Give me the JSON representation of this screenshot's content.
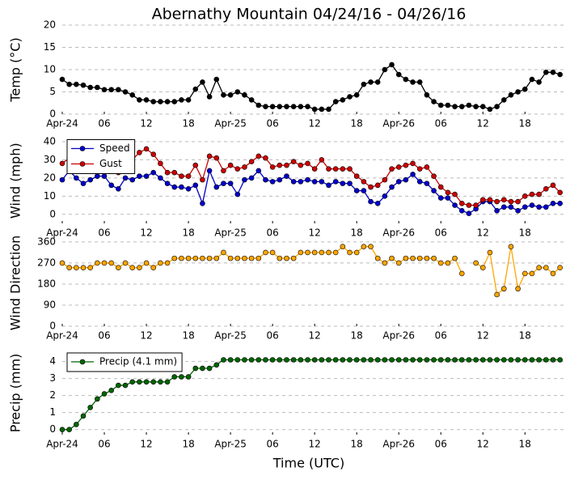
{
  "chart_data": [
    {
      "type": "line",
      "title": "Abernathy Mountain 04/24/16 - 04/26/16",
      "ylabel": "Temp (°C)",
      "x": [
        0,
        1,
        2,
        3,
        4,
        5,
        6,
        7,
        8,
        9,
        10,
        11,
        12,
        13,
        14,
        15,
        16,
        17,
        18,
        19,
        20,
        21,
        22,
        23,
        24,
        25,
        26,
        27,
        28,
        29,
        30,
        31,
        32,
        33,
        34,
        35,
        36,
        37,
        38,
        39,
        40,
        41,
        42,
        43,
        44,
        45,
        46,
        47,
        48,
        49,
        50,
        51,
        52,
        53,
        54,
        55,
        56,
        57,
        58,
        59,
        60,
        61,
        62,
        63,
        64,
        65,
        66,
        67,
        68,
        69,
        70,
        71
      ],
      "series": [
        {
          "color": "#000000",
          "values": [
            7.8,
            6.7,
            6.7,
            6.5,
            6,
            6,
            5.5,
            5.5,
            5.5,
            5,
            4.3,
            3.2,
            3.2,
            2.8,
            2.8,
            2.8,
            2.8,
            3.2,
            3.2,
            5.6,
            7.2,
            3.9,
            7.8,
            4.3,
            4.3,
            5,
            4.3,
            3.2,
            2,
            1.7,
            1.7,
            1.7,
            1.7,
            1.7,
            1.7,
            1.7,
            1.1,
            1.1,
            1.1,
            2.8,
            3.2,
            3.9,
            4.3,
            6.7,
            7.2,
            7.2,
            10,
            11.1,
            8.9,
            7.8,
            7.2,
            7.2,
            4.3,
            2.8,
            2,
            2,
            1.7,
            1.7,
            2,
            1.7,
            1.7,
            1.1,
            1.7,
            3.2,
            4.3,
            5,
            5.6,
            7.8,
            7.2,
            9.4,
            9.4,
            8.9
          ]
        }
      ],
      "xlim": [
        0,
        71.5
      ],
      "xticks": [
        {
          "value": 0,
          "label": "Apr-24"
        },
        {
          "value": 6,
          "label": "06"
        },
        {
          "value": 12,
          "label": "12"
        },
        {
          "value": 18,
          "label": "18"
        },
        {
          "value": 24,
          "label": "Apr-25"
        },
        {
          "value": 30,
          "label": "06"
        },
        {
          "value": 36,
          "label": "12"
        },
        {
          "value": 42,
          "label": "18"
        },
        {
          "value": 48,
          "label": "Apr-26"
        },
        {
          "value": 54,
          "label": "06"
        },
        {
          "value": 60,
          "label": "12"
        },
        {
          "value": 66,
          "label": "18"
        }
      ],
      "ylim": [
        0,
        20
      ],
      "yticks": [
        0,
        5,
        10,
        15,
        20
      ],
      "grid": true
    },
    {
      "type": "line",
      "ylabel": "Wind (mph)",
      "x": [
        0,
        1,
        2,
        3,
        4,
        5,
        6,
        7,
        8,
        9,
        10,
        11,
        12,
        13,
        14,
        15,
        16,
        17,
        18,
        19,
        20,
        21,
        22,
        23,
        24,
        25,
        26,
        27,
        28,
        29,
        30,
        31,
        32,
        33,
        34,
        35,
        36,
        37,
        38,
        39,
        40,
        41,
        42,
        43,
        44,
        45,
        46,
        47,
        48,
        49,
        50,
        51,
        52,
        53,
        54,
        55,
        56,
        57,
        58,
        59,
        60,
        61,
        62,
        63,
        64,
        65,
        66,
        67,
        68,
        69,
        70,
        71
      ],
      "series": [
        {
          "name": "Speed",
          "color": "#0000cc",
          "values": [
            19,
            24,
            20,
            17,
            19,
            21,
            21,
            16,
            14,
            20,
            19,
            21,
            21,
            23,
            20,
            17,
            15,
            15,
            14,
            16,
            6,
            24,
            15,
            17,
            17,
            11,
            19,
            20,
            24,
            19,
            18,
            19,
            21,
            18,
            18,
            19,
            18,
            18,
            16,
            18,
            17,
            17,
            13,
            13,
            7,
            6,
            10,
            15,
            18,
            19,
            22,
            18,
            17,
            13,
            9,
            9,
            5,
            2,
            0.5,
            3,
            7,
            7,
            2,
            4,
            4,
            2,
            4,
            5,
            4,
            4,
            6,
            6
          ]
        },
        {
          "name": "Gust",
          "color": "#cc0000",
          "values": [
            28,
            31,
            29,
            26,
            27,
            28,
            28,
            27,
            23,
            26,
            30,
            34,
            36,
            33,
            28,
            23,
            23,
            21,
            21,
            27,
            19,
            32,
            31,
            24,
            27,
            25,
            26,
            29,
            32,
            31,
            26,
            27,
            27,
            29,
            27,
            28,
            25,
            30,
            25,
            25,
            25,
            25,
            21,
            18,
            15,
            16,
            19,
            25,
            26,
            27,
            28,
            25,
            26,
            21,
            15,
            12,
            11,
            6,
            5,
            5,
            8,
            8,
            7,
            8,
            7,
            7,
            10,
            11,
            11,
            14,
            16,
            12
          ]
        }
      ],
      "xlim": [
        0,
        71.5
      ],
      "xticks": [
        {
          "value": 0,
          "label": "Apr-24"
        },
        {
          "value": 6,
          "label": "06"
        },
        {
          "value": 12,
          "label": "12"
        },
        {
          "value": 18,
          "label": "18"
        },
        {
          "value": 24,
          "label": "Apr-25"
        },
        {
          "value": 30,
          "label": "06"
        },
        {
          "value": 36,
          "label": "12"
        },
        {
          "value": 42,
          "label": "18"
        },
        {
          "value": 48,
          "label": "Apr-26"
        },
        {
          "value": 54,
          "label": "06"
        },
        {
          "value": 60,
          "label": "12"
        },
        {
          "value": 66,
          "label": "18"
        }
      ],
      "ylim": [
        -5,
        42
      ],
      "yticks": [
        0,
        10,
        20,
        30,
        40
      ],
      "grid": true,
      "legend": "upper left"
    },
    {
      "type": "line",
      "ylabel": "Wind Direction",
      "x": [
        0,
        1,
        2,
        3,
        4,
        5,
        6,
        7,
        8,
        9,
        10,
        11,
        12,
        13,
        14,
        15,
        16,
        17,
        18,
        19,
        20,
        21,
        22,
        23,
        24,
        25,
        26,
        27,
        28,
        29,
        30,
        31,
        32,
        33,
        34,
        35,
        36,
        37,
        38,
        39,
        40,
        41,
        42,
        43,
        44,
        45,
        46,
        47,
        48,
        49,
        50,
        51,
        52,
        53,
        54,
        55,
        56,
        57,
        58,
        59,
        60,
        61,
        62,
        63,
        64,
        65,
        66,
        67,
        68,
        69,
        70,
        71
      ],
      "series": [
        {
          "color": "#ffa500",
          "values": [
            270,
            250,
            250,
            250,
            250,
            270,
            270,
            270,
            250,
            270,
            250,
            250,
            270,
            250,
            270,
            270,
            290,
            290,
            290,
            290,
            290,
            290,
            290,
            315,
            290,
            290,
            290,
            290,
            290,
            315,
            315,
            290,
            290,
            290,
            315,
            315,
            315,
            315,
            315,
            315,
            340,
            315,
            315,
            340,
            340,
            290,
            270,
            290,
            270,
            290,
            290,
            290,
            290,
            290,
            270,
            270,
            290,
            225,
            null,
            270,
            250,
            315,
            135,
            160,
            340,
            160,
            225,
            225,
            250,
            250,
            225,
            250
          ]
        }
      ],
      "xlim": [
        0,
        71.5
      ],
      "xticks": [
        {
          "value": 0,
          "label": "Apr-24"
        },
        {
          "value": 6,
          "label": "06"
        },
        {
          "value": 12,
          "label": "12"
        },
        {
          "value": 18,
          "label": "18"
        },
        {
          "value": 24,
          "label": "Apr-25"
        },
        {
          "value": 30,
          "label": "06"
        },
        {
          "value": 36,
          "label": "12"
        },
        {
          "value": 42,
          "label": "18"
        },
        {
          "value": 48,
          "label": "Apr-26"
        },
        {
          "value": 54,
          "label": "06"
        },
        {
          "value": 60,
          "label": "12"
        },
        {
          "value": 66,
          "label": "18"
        }
      ],
      "ylim": [
        0,
        370
      ],
      "yticks": [
        0,
        90,
        180,
        270,
        360
      ],
      "grid": true
    },
    {
      "type": "line",
      "ylabel": "Precip (mm)",
      "xlabel": "Time (UTC)",
      "x": [
        0,
        1,
        2,
        3,
        4,
        5,
        6,
        7,
        8,
        9,
        10,
        11,
        12,
        13,
        14,
        15,
        16,
        17,
        18,
        19,
        20,
        21,
        22,
        23,
        24,
        25,
        26,
        27,
        28,
        29,
        30,
        31,
        32,
        33,
        34,
        35,
        36,
        37,
        38,
        39,
        40,
        41,
        42,
        43,
        44,
        45,
        46,
        47,
        48,
        49,
        50,
        51,
        52,
        53,
        54,
        55,
        56,
        57,
        58,
        59,
        60,
        61,
        62,
        63,
        64,
        65,
        66,
        67,
        68,
        69,
        70,
        71
      ],
      "series": [
        {
          "name": "Precip (4.1 mm)",
          "color": "#006400",
          "values": [
            0,
            0,
            0.3,
            0.8,
            1.3,
            1.8,
            2.1,
            2.3,
            2.6,
            2.6,
            2.8,
            2.8,
            2.8,
            2.8,
            2.8,
            2.8,
            3.1,
            3.1,
            3.1,
            3.6,
            3.6,
            3.6,
            3.8,
            4.1,
            4.1,
            4.1,
            4.1,
            4.1,
            4.1,
            4.1,
            4.1,
            4.1,
            4.1,
            4.1,
            4.1,
            4.1,
            4.1,
            4.1,
            4.1,
            4.1,
            4.1,
            4.1,
            4.1,
            4.1,
            4.1,
            4.1,
            4.1,
            4.1,
            4.1,
            4.1,
            4.1,
            4.1,
            4.1,
            4.1,
            4.1,
            4.1,
            4.1,
            4.1,
            4.1,
            4.1,
            4.1,
            4.1,
            4.1,
            4.1,
            4.1,
            4.1,
            4.1,
            4.1,
            4.1,
            4.1,
            4.1,
            4.1
          ]
        }
      ],
      "xlim": [
        0,
        71.5
      ],
      "xticks": [
        {
          "value": 0,
          "label": "Apr-24"
        },
        {
          "value": 6,
          "label": "06"
        },
        {
          "value": 12,
          "label": "12"
        },
        {
          "value": 18,
          "label": "18"
        },
        {
          "value": 24,
          "label": "Apr-25"
        },
        {
          "value": 30,
          "label": "06"
        },
        {
          "value": 36,
          "label": "12"
        },
        {
          "value": 42,
          "label": "18"
        },
        {
          "value": 48,
          "label": "Apr-26"
        },
        {
          "value": 54,
          "label": "06"
        },
        {
          "value": 60,
          "label": "12"
        },
        {
          "value": 66,
          "label": "18"
        }
      ],
      "ylim": [
        -0.3,
        4.6
      ],
      "yticks": [
        0,
        1,
        2,
        3,
        4
      ],
      "grid": true,
      "legend": "upper left"
    }
  ]
}
